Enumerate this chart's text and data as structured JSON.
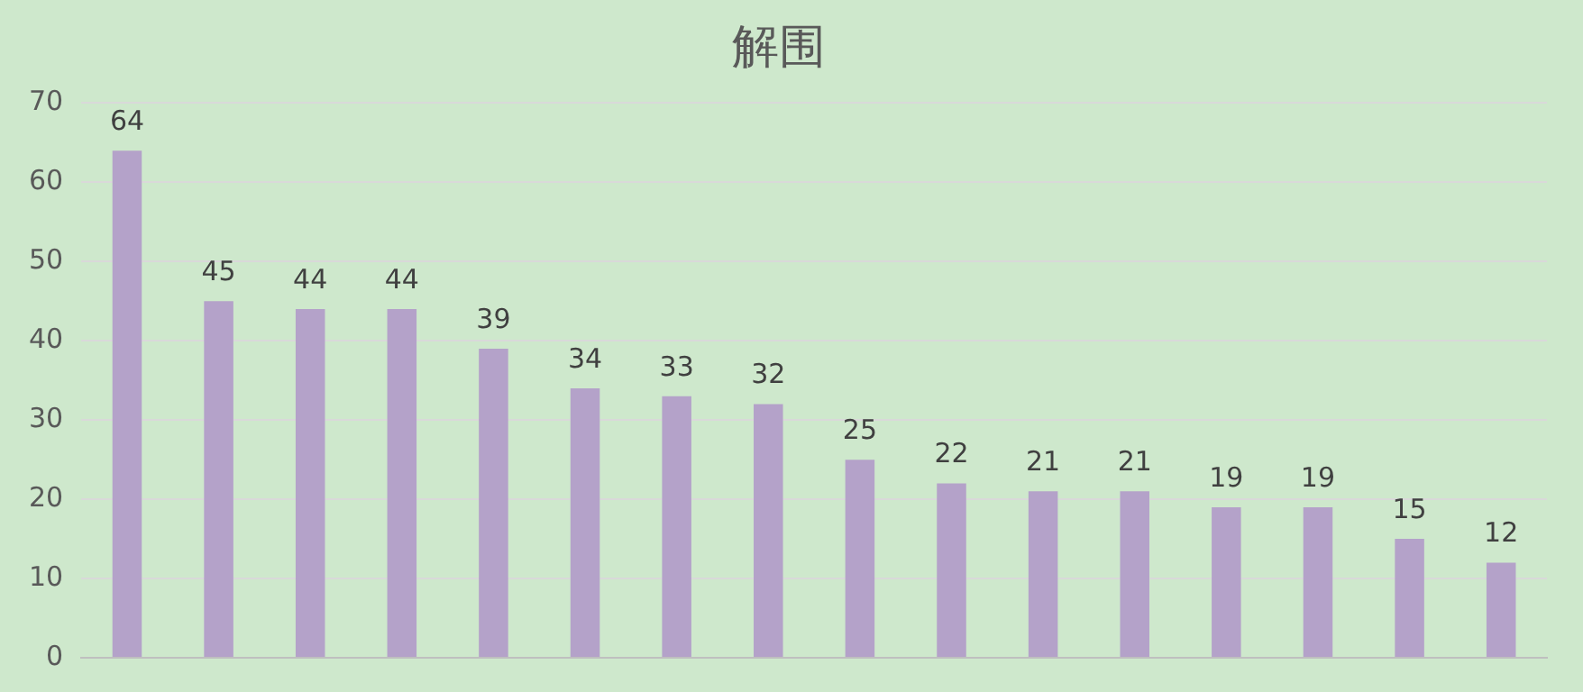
{
  "chart_data": {
    "type": "bar",
    "title": "解围",
    "categories": [
      null,
      null,
      null,
      null,
      null,
      null,
      null,
      null,
      null,
      null,
      null,
      null,
      null,
      null,
      null,
      null
    ],
    "values": [
      64,
      45,
      44,
      44,
      39,
      34,
      33,
      32,
      25,
      22,
      21,
      21,
      19,
      19,
      15,
      12
    ],
    "color": "#b4a2c9",
    "ylim": [
      0,
      70
    ],
    "yticks": [
      0,
      10,
      20,
      30,
      40,
      50,
      60,
      70
    ],
    "grid": "y",
    "data_labels": true,
    "legend": false,
    "tick_labels": "y"
  }
}
